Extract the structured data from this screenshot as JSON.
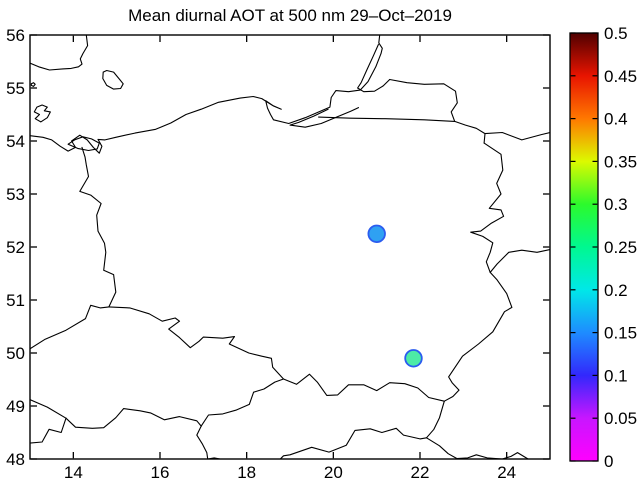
{
  "figure": {
    "background": "#FFFFFF",
    "title": "Mean diurnal AOT at 500 nm 29–Oct–2019"
  },
  "chart_data": {
    "type": "scatter",
    "title": "Mean diurnal AOT at 500 nm 29–Oct–2019",
    "xlabel": "",
    "ylabel": "",
    "xlim": [
      13,
      25
    ],
    "ylim": [
      48,
      56
    ],
    "grid": false,
    "x_ticks": [
      14,
      16,
      18,
      20,
      22,
      24
    ],
    "x_tick_labels": [
      "14",
      "16",
      "18",
      "20",
      "22",
      "24"
    ],
    "y_ticks": [
      48,
      49,
      50,
      51,
      52,
      53,
      54,
      55,
      56
    ],
    "y_tick_labels": [
      "48",
      "49",
      "50",
      "51",
      "52",
      "53",
      "54",
      "55",
      "56"
    ],
    "points": [
      {
        "lon": 21.0,
        "lat": 52.25,
        "aot_500nm": 0.15,
        "fill": "#2FA1F2",
        "edge": "#2B5CEF"
      },
      {
        "lon": 21.85,
        "lat": 49.9,
        "aot_500nm": 0.27,
        "fill": "#4DEBA6",
        "edge": "#2B5CEF"
      }
    ],
    "colorbar": {
      "min": 0,
      "max": 0.5,
      "ticks": [
        0,
        0.05,
        0.1,
        0.15,
        0.2,
        0.25,
        0.3,
        0.35,
        0.4,
        0.45,
        0.5
      ],
      "tick_labels": [
        "0",
        "0.05",
        "0.1",
        "0.15",
        "0.2",
        "0.25",
        "0.3",
        "0.35",
        "0.4",
        "0.45",
        "0.5"
      ],
      "stops": [
        {
          "v": 0.0,
          "c": "#FF00FF"
        },
        {
          "v": 0.05,
          "c": "#C816FF"
        },
        {
          "v": 0.1,
          "c": "#3228FC"
        },
        {
          "v": 0.15,
          "c": "#1E8CFF"
        },
        {
          "v": 0.2,
          "c": "#00E8E8"
        },
        {
          "v": 0.25,
          "c": "#00F890"
        },
        {
          "v": 0.3,
          "c": "#2CFA2C"
        },
        {
          "v": 0.35,
          "c": "#DCFA00"
        },
        {
          "v": 0.4,
          "c": "#FF7800"
        },
        {
          "v": 0.45,
          "c": "#E81400"
        },
        {
          "v": 0.5,
          "c": "#500000"
        }
      ]
    },
    "map_outlines": {
      "sweden_coast": [
        [
          13.0,
          55.47
        ],
        [
          13.2,
          55.4
        ],
        [
          13.45,
          55.34
        ],
        [
          13.75,
          55.36
        ],
        [
          13.95,
          55.37
        ],
        [
          14.12,
          55.4
        ],
        [
          14.2,
          55.45
        ],
        [
          14.16,
          55.55
        ],
        [
          14.22,
          55.65
        ],
        [
          14.33,
          55.8
        ],
        [
          14.3,
          56.0
        ]
      ],
      "bornholm_island": [
        [
          14.69,
          55.3
        ],
        [
          14.77,
          55.33
        ],
        [
          14.93,
          55.3
        ],
        [
          15.07,
          55.16
        ],
        [
          15.15,
          55.08
        ],
        [
          15.09,
          54.99
        ],
        [
          14.93,
          54.98
        ],
        [
          14.77,
          55.05
        ],
        [
          14.68,
          55.18
        ],
        [
          14.69,
          55.3
        ]
      ],
      "small_island": [
        [
          13.03,
          55.08
        ],
        [
          13.08,
          55.1
        ],
        [
          13.12,
          55.07
        ],
        [
          13.08,
          55.03
        ],
        [
          13.03,
          55.05
        ],
        [
          13.03,
          55.08
        ]
      ],
      "rugen_island": [
        [
          13.1,
          54.55
        ],
        [
          13.16,
          54.64
        ],
        [
          13.28,
          54.68
        ],
        [
          13.4,
          54.64
        ],
        [
          13.33,
          54.57
        ],
        [
          13.47,
          54.55
        ],
        [
          13.4,
          54.44
        ],
        [
          13.25,
          54.36
        ],
        [
          13.12,
          54.42
        ],
        [
          13.22,
          54.5
        ],
        [
          13.1,
          54.55
        ]
      ],
      "baltic_coastline": [
        [
          13.0,
          54.1
        ],
        [
          13.3,
          54.07
        ],
        [
          13.5,
          54.02
        ],
        [
          13.7,
          53.9
        ],
        [
          13.88,
          53.81
        ],
        [
          14.05,
          53.88
        ],
        [
          13.96,
          54.0
        ],
        [
          14.15,
          54.11
        ],
        [
          14.32,
          54.02
        ],
        [
          14.46,
          53.88
        ],
        [
          14.6,
          53.77
        ],
        [
          14.66,
          53.9
        ],
        [
          14.57,
          54.03
        ],
        [
          14.73,
          54.02
        ],
        [
          14.98,
          54.07
        ],
        [
          15.42,
          54.15
        ],
        [
          15.9,
          54.22
        ],
        [
          16.25,
          54.34
        ],
        [
          16.6,
          54.5
        ],
        [
          16.95,
          54.6
        ],
        [
          17.35,
          54.73
        ],
        [
          17.85,
          54.81
        ],
        [
          18.15,
          54.84
        ],
        [
          18.35,
          54.8
        ],
        [
          18.6,
          54.67
        ],
        [
          18.8,
          54.6
        ],
        [
          18.62,
          54.66
        ],
        [
          18.44,
          54.76
        ],
        [
          18.48,
          54.62
        ],
        [
          18.55,
          54.5
        ],
        [
          18.62,
          54.4
        ],
        [
          18.97,
          54.33
        ],
        [
          19.35,
          54.44
        ],
        [
          19.7,
          54.56
        ],
        [
          19.92,
          54.64
        ],
        [
          19.95,
          54.82
        ],
        [
          20.06,
          54.95
        ],
        [
          20.35,
          54.93
        ],
        [
          20.62,
          54.96
        ],
        [
          20.8,
          55.12
        ],
        [
          20.98,
          55.4
        ],
        [
          21.1,
          55.65
        ],
        [
          21.13,
          55.75
        ],
        [
          21.05,
          55.85
        ],
        [
          21.07,
          56.0
        ]
      ],
      "szczecin_lagoon": [
        [
          13.88,
          53.94
        ],
        [
          14.1,
          53.86
        ],
        [
          14.35,
          53.82
        ],
        [
          14.55,
          53.85
        ],
        [
          14.6,
          53.96
        ],
        [
          14.42,
          54.04
        ],
        [
          14.22,
          54.08
        ],
        [
          14.03,
          54.02
        ],
        [
          13.88,
          53.94
        ]
      ],
      "vistula_lagoon": [
        [
          19.88,
          54.6
        ],
        [
          19.55,
          54.47
        ],
        [
          19.2,
          54.35
        ],
        [
          19.0,
          54.3
        ],
        [
          19.35,
          54.26
        ],
        [
          19.72,
          54.33
        ],
        [
          20.1,
          54.46
        ],
        [
          20.4,
          54.56
        ],
        [
          20.58,
          54.63
        ]
      ],
      "curonian_lagoon": [
        [
          21.04,
          55.82
        ],
        [
          20.92,
          55.6
        ],
        [
          20.78,
          55.35
        ],
        [
          20.64,
          55.1
        ],
        [
          20.56,
          55.0
        ],
        [
          20.7,
          54.93
        ],
        [
          20.95,
          54.94
        ],
        [
          21.15,
          55.04
        ],
        [
          21.3,
          55.16
        ]
      ],
      "ru_lt_border": [
        [
          21.3,
          55.16
        ],
        [
          21.7,
          55.1
        ],
        [
          22.1,
          55.07
        ],
        [
          22.55,
          55.08
        ],
        [
          22.82,
          54.94
        ],
        [
          22.86,
          54.72
        ],
        [
          22.72,
          54.55
        ],
        [
          22.8,
          54.37
        ]
      ],
      "pl_ru_border": [
        [
          19.66,
          54.45
        ],
        [
          20.4,
          54.43
        ],
        [
          21.2,
          54.42
        ],
        [
          22.1,
          54.4
        ],
        [
          22.8,
          54.37
        ]
      ],
      "pl_lt_border": [
        [
          22.8,
          54.37
        ],
        [
          23.05,
          54.3
        ],
        [
          23.3,
          54.24
        ],
        [
          23.5,
          54.14
        ],
        [
          23.48,
          53.96
        ]
      ],
      "lt_by_border": [
        [
          23.5,
          54.14
        ],
        [
          23.9,
          54.16
        ],
        [
          24.35,
          54.02
        ],
        [
          24.8,
          54.12
        ],
        [
          25.0,
          54.16
        ]
      ],
      "pl_east_border": [
        [
          23.48,
          53.96
        ],
        [
          23.87,
          53.75
        ],
        [
          23.91,
          53.45
        ],
        [
          23.77,
          53.2
        ],
        [
          23.87,
          53.0
        ],
        [
          23.6,
          52.73
        ],
        [
          23.87,
          52.7
        ],
        [
          23.93,
          52.58
        ],
        [
          23.65,
          52.45
        ],
        [
          23.4,
          52.3
        ],
        [
          23.17,
          52.28
        ],
        [
          23.45,
          52.2
        ],
        [
          23.68,
          52.08
        ],
        [
          23.62,
          51.9
        ],
        [
          23.53,
          51.72
        ],
        [
          23.62,
          51.52
        ],
        [
          23.78,
          51.38
        ],
        [
          24.0,
          51.12
        ],
        [
          24.12,
          50.86
        ],
        [
          23.95,
          50.78
        ],
        [
          23.68,
          50.4
        ],
        [
          23.35,
          50.17
        ],
        [
          22.98,
          49.94
        ],
        [
          22.66,
          49.55
        ],
        [
          22.74,
          49.44
        ],
        [
          22.9,
          49.3
        ],
        [
          22.76,
          49.18
        ],
        [
          22.56,
          49.09
        ]
      ],
      "by_ua_border": [
        [
          23.62,
          51.52
        ],
        [
          23.78,
          51.68
        ],
        [
          24.05,
          51.9
        ],
        [
          24.35,
          51.94
        ],
        [
          24.7,
          51.9
        ],
        [
          25.0,
          51.95
        ]
      ],
      "pl_south_border": [
        [
          22.56,
          49.09
        ],
        [
          22.2,
          49.16
        ],
        [
          21.95,
          49.34
        ],
        [
          21.65,
          49.42
        ],
        [
          21.3,
          49.44
        ],
        [
          21.0,
          49.29
        ],
        [
          20.7,
          49.4
        ],
        [
          20.35,
          49.4
        ],
        [
          20.1,
          49.21
        ],
        [
          19.85,
          49.2
        ],
        [
          19.63,
          49.45
        ],
        [
          19.45,
          49.6
        ],
        [
          19.15,
          49.41
        ],
        [
          18.85,
          49.51
        ],
        [
          18.6,
          49.73
        ],
        [
          18.57,
          49.9
        ],
        [
          18.35,
          49.94
        ],
        [
          18.05,
          50.0
        ],
        [
          17.6,
          50.17
        ],
        [
          17.72,
          50.31
        ],
        [
          17.45,
          50.28
        ],
        [
          17.0,
          50.3
        ],
        [
          16.9,
          50.22
        ],
        [
          16.7,
          50.1
        ],
        [
          16.45,
          50.29
        ],
        [
          16.2,
          50.45
        ],
        [
          16.45,
          50.6
        ],
        [
          16.35,
          50.66
        ],
        [
          16.05,
          50.6
        ],
        [
          15.75,
          50.74
        ],
        [
          15.3,
          50.85
        ],
        [
          14.82,
          50.87
        ]
      ],
      "pl_west_border": [
        [
          14.82,
          50.87
        ],
        [
          14.98,
          51.15
        ],
        [
          14.93,
          51.48
        ],
        [
          14.7,
          51.56
        ],
        [
          14.75,
          51.9
        ],
        [
          14.72,
          52.07
        ],
        [
          14.57,
          52.3
        ],
        [
          14.54,
          52.6
        ],
        [
          14.64,
          52.82
        ],
        [
          14.4,
          52.98
        ],
        [
          14.15,
          53.05
        ],
        [
          14.35,
          53.33
        ],
        [
          14.3,
          53.55
        ],
        [
          14.27,
          53.7
        ],
        [
          14.2,
          53.88
        ]
      ],
      "de_cz_border_north": [
        [
          13.0,
          50.08
        ],
        [
          13.35,
          50.26
        ],
        [
          13.83,
          50.43
        ],
        [
          14.28,
          50.65
        ],
        [
          14.4,
          50.9
        ],
        [
          14.62,
          50.85
        ],
        [
          14.82,
          50.87
        ]
      ],
      "de_cz_border_west": [
        [
          13.0,
          49.12
        ],
        [
          13.4,
          48.98
        ],
        [
          13.83,
          48.77
        ]
      ],
      "de_at_border": [
        [
          13.0,
          48.3
        ],
        [
          13.28,
          48.32
        ],
        [
          13.44,
          48.56
        ],
        [
          13.72,
          48.5
        ],
        [
          13.83,
          48.77
        ]
      ],
      "cz_at_border": [
        [
          13.83,
          48.77
        ],
        [
          14.05,
          48.6
        ],
        [
          14.44,
          48.58
        ],
        [
          14.7,
          48.59
        ],
        [
          14.98,
          48.78
        ],
        [
          15.16,
          48.95
        ],
        [
          15.54,
          48.91
        ],
        [
          15.78,
          48.87
        ],
        [
          16.1,
          48.74
        ],
        [
          16.45,
          48.8
        ],
        [
          16.85,
          48.72
        ],
        [
          16.95,
          48.62
        ]
      ],
      "cz_sk_border": [
        [
          16.95,
          48.62
        ],
        [
          17.12,
          48.83
        ],
        [
          17.45,
          48.85
        ],
        [
          17.75,
          48.92
        ],
        [
          18.06,
          49.03
        ],
        [
          18.16,
          49.26
        ],
        [
          18.4,
          49.32
        ],
        [
          18.65,
          49.45
        ],
        [
          18.85,
          49.51
        ]
      ],
      "at_sk_border": [
        [
          16.95,
          48.62
        ],
        [
          16.85,
          48.45
        ],
        [
          16.98,
          48.28
        ],
        [
          17.08,
          48.12
        ],
        [
          17.1,
          48.0
        ]
      ],
      "sk_hu_border": [
        [
          17.1,
          48.0
        ],
        [
          17.25,
          48.02
        ],
        [
          17.45,
          47.99
        ],
        [
          17.7,
          47.95
        ],
        [
          17.9,
          47.97
        ],
        [
          18.3,
          47.98
        ],
        [
          18.75,
          47.98
        ],
        [
          18.85,
          48.06
        ],
        [
          19.0,
          48.08
        ],
        [
          19.5,
          48.22
        ],
        [
          19.9,
          48.13
        ],
        [
          20.3,
          48.26
        ],
        [
          20.5,
          48.54
        ],
        [
          20.85,
          48.57
        ],
        [
          21.12,
          48.5
        ],
        [
          21.45,
          48.58
        ],
        [
          21.62,
          48.45
        ],
        [
          22.0,
          48.38
        ],
        [
          22.15,
          48.4
        ]
      ],
      "ua_sk_border": [
        [
          22.15,
          48.4
        ],
        [
          22.32,
          48.56
        ],
        [
          22.45,
          48.78
        ],
        [
          22.56,
          49.09
        ]
      ],
      "ua_hu_ro_border": [
        [
          22.15,
          48.4
        ],
        [
          22.45,
          48.25
        ],
        [
          22.65,
          48.1
        ],
        [
          22.85,
          48.01
        ],
        [
          23.1,
          48.02
        ],
        [
          23.3,
          48.08
        ],
        [
          23.55,
          48.02
        ],
        [
          23.9,
          48.0
        ],
        [
          24.1,
          48.05
        ],
        [
          24.25,
          48.12
        ],
        [
          24.45,
          48.02
        ],
        [
          24.6,
          47.95
        ]
      ]
    }
  }
}
